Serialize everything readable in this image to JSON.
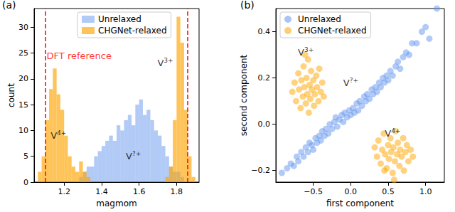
{
  "chart_data": [
    {
      "type": "histogram",
      "title": "(a)",
      "x_label": "magmom",
      "y_label": "count",
      "bins": [
        1.06,
        1.08,
        1.1,
        1.12,
        1.14,
        1.16,
        1.18,
        1.2,
        1.22,
        1.24,
        1.26,
        1.28,
        1.3,
        1.32,
        1.34,
        1.36,
        1.38,
        1.4,
        1.42,
        1.44,
        1.46,
        1.48,
        1.5,
        1.52,
        1.54,
        1.56,
        1.58,
        1.6,
        1.62,
        1.64,
        1.66,
        1.68,
        1.7,
        1.72,
        1.74,
        1.76,
        1.78,
        1.8,
        1.82,
        1.84,
        1.86,
        1.88,
        1.9
      ],
      "series": [
        {
          "name": "Unrelaxed",
          "color": "#6495ED",
          "values": [
            0,
            0,
            0,
            0,
            0,
            0,
            0,
            0,
            0,
            0,
            0,
            1,
            2,
            3,
            3,
            5,
            6,
            7,
            8,
            9,
            8,
            11,
            10,
            12,
            13,
            11,
            15,
            16,
            13,
            14,
            12,
            10,
            9,
            7,
            5,
            3,
            2,
            2,
            1,
            0,
            0,
            0
          ]
        },
        {
          "name": "CHGNet-relaxed",
          "color": "#FFA500",
          "values": [
            2,
            5,
            12,
            18,
            22,
            17,
            14,
            9,
            5,
            3,
            2,
            4,
            2,
            1,
            0,
            0,
            0,
            0,
            0,
            0,
            0,
            0,
            0,
            0,
            0,
            0,
            0,
            0,
            0,
            0,
            0,
            0,
            0,
            0,
            1,
            3,
            12,
            32,
            27,
            14,
            5,
            1
          ]
        }
      ],
      "reference_lines": {
        "values": [
          1.1,
          1.86
        ],
        "color": "red",
        "line_style": "dashed"
      },
      "annotations": [
        {
          "text": "DFT reference",
          "x": 1.28,
          "y": 24.5,
          "color": "red"
        },
        {
          "text": "V",
          "superscript": "4+",
          "x": 1.17,
          "y": 9
        },
        {
          "text": "V",
          "superscript": "3+",
          "x": 1.74,
          "y": 23
        },
        {
          "text": "V",
          "superscript": "?+",
          "x": 1.57,
          "y": 5
        }
      ],
      "xlim": [
        1.04,
        1.92
      ],
      "xticks": [
        1.2,
        1.4,
        1.6,
        1.8
      ],
      "ylim": [
        0,
        33.6
      ],
      "yticks": [
        0,
        5,
        10,
        15,
        20,
        25,
        30
      ],
      "legend": "upper center",
      "grid": false
    },
    {
      "type": "scatter",
      "title": "(b)",
      "x_label": "first component",
      "y_label": "second component",
      "series": [
        {
          "name": "Unrelaxed",
          "color": "#6495ED",
          "points": [
            [
              -0.92,
              -0.21
            ],
            [
              -0.85,
              -0.19
            ],
            [
              -0.8,
              -0.17
            ],
            [
              -0.76,
              -0.18
            ],
            [
              -0.72,
              -0.14
            ],
            [
              -0.7,
              -0.16
            ],
            [
              -0.66,
              -0.12
            ],
            [
              -0.63,
              -0.14
            ],
            [
              -0.6,
              -0.1
            ],
            [
              -0.57,
              -0.12
            ],
            [
              -0.55,
              -0.08
            ],
            [
              -0.52,
              -0.09
            ],
            [
              -0.5,
              -0.11
            ],
            [
              -0.47,
              -0.06
            ],
            [
              -0.45,
              -0.08
            ],
            [
              -0.42,
              -0.05
            ],
            [
              -0.4,
              -0.07
            ],
            [
              -0.38,
              -0.03
            ],
            [
              -0.35,
              -0.05
            ],
            [
              -0.33,
              -0.02
            ],
            [
              -0.3,
              -0.04
            ],
            [
              -0.28,
              0.0
            ],
            [
              -0.25,
              -0.02
            ],
            [
              -0.22,
              0.01
            ],
            [
              -0.2,
              0.03
            ],
            [
              -0.18,
              -0.01
            ],
            [
              -0.15,
              0.02
            ],
            [
              -0.12,
              0.04
            ],
            [
              -0.1,
              0.01
            ],
            [
              -0.08,
              0.05
            ],
            [
              -0.05,
              0.03
            ],
            [
              -0.02,
              0.06
            ],
            [
              0.0,
              0.04
            ],
            [
              0.03,
              0.07
            ],
            [
              0.05,
              0.05
            ],
            [
              0.08,
              0.09
            ],
            [
              0.1,
              0.06
            ],
            [
              0.12,
              0.1
            ],
            [
              0.15,
              0.08
            ],
            [
              0.18,
              0.12
            ],
            [
              0.2,
              0.1
            ],
            [
              0.22,
              0.13
            ],
            [
              0.25,
              0.11
            ],
            [
              0.28,
              0.15
            ],
            [
              0.3,
              0.13
            ],
            [
              0.33,
              0.16
            ],
            [
              0.35,
              0.14
            ],
            [
              0.38,
              0.18
            ],
            [
              0.4,
              0.16
            ],
            [
              0.43,
              0.2
            ],
            [
              0.45,
              0.18
            ],
            [
              0.48,
              0.21
            ],
            [
              0.5,
              0.19
            ],
            [
              0.53,
              0.23
            ],
            [
              0.56,
              0.21
            ],
            [
              0.6,
              0.25
            ],
            [
              0.63,
              0.27
            ],
            [
              0.66,
              0.24
            ],
            [
              0.7,
              0.29
            ],
            [
              0.74,
              0.31
            ],
            [
              0.78,
              0.3
            ],
            [
              0.82,
              0.35
            ],
            [
              0.88,
              0.35
            ],
            [
              0.95,
              0.4
            ],
            [
              1.0,
              0.42
            ],
            [
              1.05,
              0.37
            ],
            [
              1.15,
              0.5
            ]
          ]
        },
        {
          "name": "CHGNet-relaxed",
          "color": "#FFA500",
          "points": [
            [
              -0.78,
              0.14
            ],
            [
              -0.75,
              0.18
            ],
            [
              -0.73,
              0.1
            ],
            [
              -0.7,
              0.22
            ],
            [
              -0.69,
              0.15
            ],
            [
              -0.67,
              0.07
            ],
            [
              -0.66,
              0.19
            ],
            [
              -0.64,
              0.12
            ],
            [
              -0.63,
              0.25
            ],
            [
              -0.62,
              0.16
            ],
            [
              -0.6,
              0.09
            ],
            [
              -0.59,
              0.2
            ],
            [
              -0.58,
              0.13
            ],
            [
              -0.57,
              0.28
            ],
            [
              -0.56,
              0.05
            ],
            [
              -0.55,
              0.17
            ],
            [
              -0.54,
              0.11
            ],
            [
              -0.53,
              0.23
            ],
            [
              -0.52,
              0.15
            ],
            [
              -0.5,
              0.19
            ],
            [
              -0.49,
              0.08
            ],
            [
              -0.48,
              0.13
            ],
            [
              -0.46,
              0.21
            ],
            [
              -0.45,
              0.16
            ],
            [
              -0.43,
              0.1
            ],
            [
              -0.42,
              0.24
            ],
            [
              -0.4,
              0.14
            ],
            [
              -0.38,
              0.18
            ],
            [
              -0.36,
              0.12
            ],
            [
              -0.61,
              0.3
            ],
            [
              0.32,
              -0.1
            ],
            [
              0.35,
              -0.14
            ],
            [
              0.37,
              -0.07
            ],
            [
              0.4,
              -0.17
            ],
            [
              0.42,
              -0.11
            ],
            [
              0.44,
              -0.04
            ],
            [
              0.46,
              -0.13
            ],
            [
              0.48,
              -0.19
            ],
            [
              0.5,
              -0.09
            ],
            [
              0.51,
              -0.15
            ],
            [
              0.53,
              -0.06
            ],
            [
              0.54,
              -0.12
            ],
            [
              0.56,
              -0.21
            ],
            [
              0.57,
              -0.1
            ],
            [
              0.59,
              -0.16
            ],
            [
              0.6,
              -0.03
            ],
            [
              0.62,
              -0.13
            ],
            [
              0.63,
              -0.08
            ],
            [
              0.65,
              -0.18
            ],
            [
              0.66,
              -0.11
            ],
            [
              0.68,
              -0.14
            ],
            [
              0.7,
              -0.06
            ],
            [
              0.71,
              -0.2
            ],
            [
              0.73,
              -0.12
            ],
            [
              0.75,
              -0.09
            ],
            [
              0.77,
              -0.16
            ],
            [
              0.8,
              -0.11
            ],
            [
              0.83,
              -0.14
            ],
            [
              0.58,
              -0.24
            ],
            [
              0.45,
              -0.2
            ]
          ]
        }
      ],
      "annotations": [
        {
          "text": "V",
          "superscript": "3+",
          "x": -0.6,
          "y": 0.31
        },
        {
          "text": "V",
          "superscript": "?+",
          "x": 0.0,
          "y": 0.18
        },
        {
          "text": "V",
          "superscript": "4+",
          "x": 0.56,
          "y": -0.04
        }
      ],
      "xlim": [
        -1.0,
        1.25
      ],
      "xticks": [
        {
          "value": -0.5,
          "label": "−0.5"
        },
        {
          "value": 0,
          "label": "0.0"
        },
        {
          "value": 0.5,
          "label": "0.5"
        },
        {
          "value": 1.0,
          "label": "1.0"
        }
      ],
      "ylim": [
        -0.25,
        0.5
      ],
      "yticks": [
        {
          "value": -0.2,
          "label": "−0.2"
        },
        {
          "value": 0,
          "label": "0.0"
        },
        {
          "value": 0.2,
          "label": "0.2"
        },
        {
          "value": 0.4,
          "label": "0.4"
        }
      ],
      "legend": "upper left",
      "grid": false
    }
  ]
}
